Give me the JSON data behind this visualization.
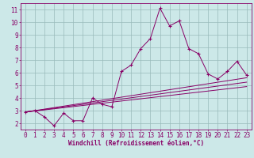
{
  "xlabel": "Windchill (Refroidissement éolien,°C)",
  "background_color": "#cce8e8",
  "line_color": "#880066",
  "grid_color": "#99bbbb",
  "xlim": [
    -0.5,
    23.5
  ],
  "ylim": [
    1.5,
    11.5
  ],
  "xticks": [
    0,
    1,
    2,
    3,
    4,
    5,
    6,
    7,
    8,
    9,
    10,
    11,
    12,
    13,
    14,
    15,
    16,
    17,
    18,
    19,
    20,
    21,
    22,
    23
  ],
  "yticks": [
    2,
    3,
    4,
    5,
    6,
    7,
    8,
    9,
    10,
    11
  ],
  "main_x": [
    0,
    1,
    2,
    3,
    4,
    5,
    6,
    7,
    8,
    9,
    10,
    11,
    12,
    13,
    14,
    15,
    16,
    17,
    18,
    19,
    20,
    21,
    22,
    23
  ],
  "main_y": [
    2.9,
    3.0,
    2.5,
    1.8,
    2.8,
    2.2,
    2.2,
    4.0,
    3.5,
    3.3,
    6.1,
    6.6,
    7.9,
    8.7,
    11.1,
    9.7,
    10.1,
    7.9,
    7.5,
    5.9,
    5.5,
    6.1,
    6.9,
    5.8
  ],
  "line2_x": [
    0,
    23
  ],
  "line2_y": [
    2.88,
    5.6
  ],
  "line3_x": [
    0,
    23
  ],
  "line3_y": [
    2.88,
    4.9
  ],
  "line4_x": [
    0,
    23
  ],
  "line4_y": [
    2.88,
    5.25
  ],
  "tick_fontsize": 5.5,
  "xlabel_fontsize": 5.5
}
